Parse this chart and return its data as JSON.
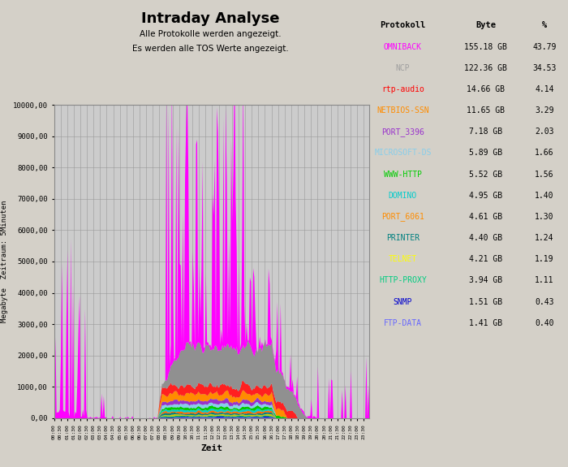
{
  "title": "Intraday Analyse",
  "subtitle_line1": "Alle Protokolle werden angezeigt.",
  "subtitle_line2": "Es werden alle TOS Werte angezeigt.",
  "ylabel": "Megabyte  Zeitraum: 5Minuten",
  "xlabel": "Zeit",
  "ylim": [
    0,
    10000
  ],
  "yticks": [
    0,
    1000,
    2000,
    3000,
    4000,
    5000,
    6000,
    7000,
    8000,
    9000,
    10000
  ],
  "ytick_labels": [
    "0,00",
    "1000,00",
    "2000,00",
    "3000,00",
    "4000,00",
    "5000,00",
    "6000,00",
    "7000,00",
    "8000,00",
    "9000,00",
    "10000,00"
  ],
  "bg_color": "#d4d0c8",
  "plot_bg": "#cccccc",
  "table_header_bg": "#c8c8c8",
  "table_row_bg1": "#e0e0e0",
  "table_row_bg2": "#d0d0d0",
  "table": {
    "headers": [
      "Protokoll",
      "Byte",
      "%"
    ],
    "rows": [
      [
        "OMNIBACK",
        "155.18 GB",
        "43.79",
        "#ff00ff"
      ],
      [
        "NCP",
        "122.36 GB",
        "34.53",
        "#a0a0a0"
      ],
      [
        "rtp-audio",
        "14.66 GB",
        "4.14",
        "#ff0000"
      ],
      [
        "NETBIOS-SSN",
        "11.65 GB",
        "3.29",
        "#ff8c00"
      ],
      [
        "PORT_3396",
        "7.18 GB",
        "2.03",
        "#9932cc"
      ],
      [
        "MICROSOFT-DS",
        "5.89 GB",
        "1.66",
        "#87ceeb"
      ],
      [
        "WWW-HTTP",
        "5.52 GB",
        "1.56",
        "#00cc00"
      ],
      [
        "DOMINO",
        "4.95 GB",
        "1.40",
        "#00cccc"
      ],
      [
        "PORT_6061",
        "4.61 GB",
        "1.30",
        "#ff8c00"
      ],
      [
        "PRINTER",
        "4.40 GB",
        "1.24",
        "#008080"
      ],
      [
        "TELNET",
        "4.21 GB",
        "1.19",
        "#ffff00"
      ],
      [
        "HTTP-PROXY",
        "3.94 GB",
        "1.11",
        "#00cc80"
      ],
      [
        "SNMP",
        "1.51 GB",
        "0.43",
        "#0000cd"
      ],
      [
        "FTP-DATA",
        "1.41 GB",
        "0.40",
        "#6666ff"
      ]
    ]
  },
  "series_colors": {
    "OMNIBACK": "#ff00ff",
    "NCP": "#909090",
    "rtp-audio": "#ff2020",
    "NETBIOS-SSN": "#ff8c00",
    "PORT_3396": "#9932cc",
    "MICROSOFT-DS": "#87ceeb",
    "WWW-HTTP": "#00cc00",
    "DOMINO": "#00cccc",
    "PORT_6061": "#ff6600",
    "PRINTER": "#008080",
    "TELNET": "#cccc00",
    "HTTP-PROXY": "#00aa66",
    "SNMP": "#0000cd",
    "FTP-DATA": "#6666ff"
  }
}
